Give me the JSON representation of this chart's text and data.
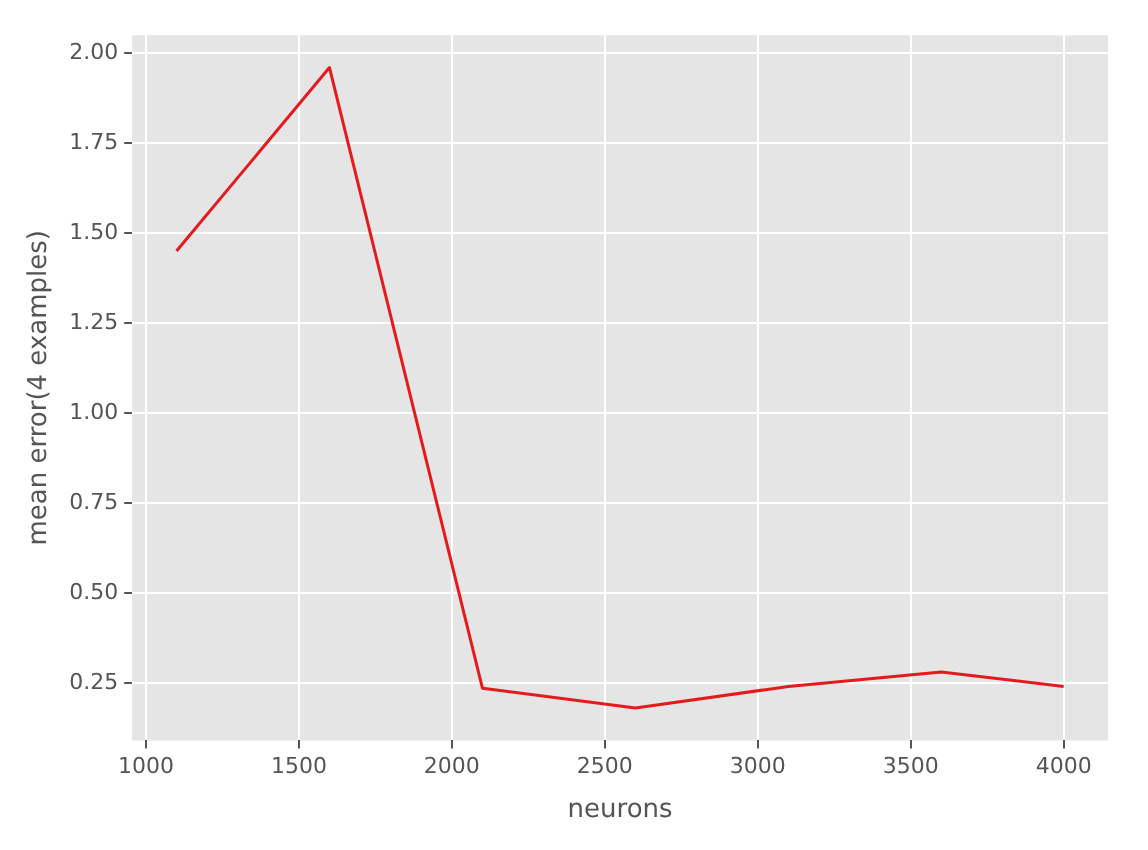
{
  "chart_data": {
    "type": "line",
    "xlabel": "neurons",
    "ylabel": "mean error(4 examples)",
    "x": [
      1100,
      1600,
      2100,
      2600,
      3100,
      3600,
      4000
    ],
    "series": [
      {
        "color": "#e41a1c",
        "values": [
          1.45,
          1.96,
          0.235,
          0.18,
          0.24,
          0.28,
          0.24
        ]
      }
    ],
    "xlim": [
      955,
      4145
    ],
    "xticks": [
      1000,
      1500,
      2000,
      2500,
      3000,
      3500,
      4000
    ],
    "ylim": [
      0.09,
      2.05
    ],
    "yticks": [
      {
        "value": 0.25,
        "label": "0.25"
      },
      {
        "value": 0.5,
        "label": "0.50"
      },
      {
        "value": 0.75,
        "label": "0.75"
      },
      {
        "value": 1,
        "label": "1.00"
      },
      {
        "value": 1.25,
        "label": "1.25"
      },
      {
        "value": 1.5,
        "label": "1.50"
      },
      {
        "value": 1.75,
        "label": "1.75"
      },
      {
        "value": 2,
        "label": "2.00"
      }
    ],
    "grid": true,
    "legend": false,
    "marker": "none",
    "line_style": "solid"
  }
}
